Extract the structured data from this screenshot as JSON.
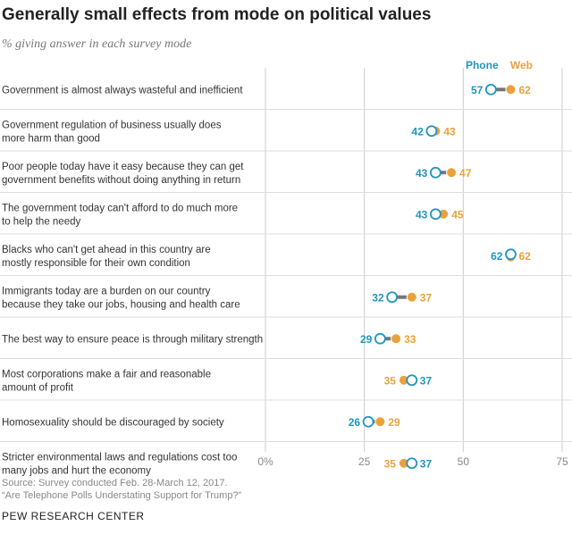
{
  "title": "Generally small effects from mode on political values",
  "subtitle": "% giving answer in each survey mode",
  "colors": {
    "phone": "#1f95bd",
    "web": "#e9a23b",
    "connector": "#777777",
    "grid": "#cccccc",
    "separator": "#dddddd",
    "text": "#333333"
  },
  "chart_data": {
    "type": "dot",
    "series": [
      {
        "name": "Phone",
        "color": "#1f95bd"
      },
      {
        "name": "Web",
        "color": "#e9a23b"
      }
    ],
    "xlim": [
      0,
      75
    ],
    "xticks": [
      {
        "value": 0,
        "label": "0%"
      },
      {
        "value": 25,
        "label": "25"
      },
      {
        "value": 50,
        "label": "50"
      },
      {
        "value": 75,
        "label": "75"
      }
    ],
    "rows": [
      {
        "lines": [
          "Government is almost always wasteful and inefficient"
        ],
        "phone": 57,
        "web": 62
      },
      {
        "lines": [
          "Government regulation of business usually does",
          "more harm than good"
        ],
        "phone": 42,
        "web": 43
      },
      {
        "lines": [
          "Poor people today have it easy because they can get",
          "government benefits without doing anything in return"
        ],
        "phone": 43,
        "web": 47
      },
      {
        "lines": [
          "The government today can't afford to do much more",
          "to help the needy"
        ],
        "phone": 43,
        "web": 45
      },
      {
        "lines": [
          "Blacks who can't get ahead in this country are",
          "mostly responsible for their own condition"
        ],
        "phone": 62,
        "web": 62
      },
      {
        "lines": [
          "Immigrants today are a burden on our country",
          "because they take our jobs, housing and health care"
        ],
        "phone": 32,
        "web": 37
      },
      {
        "lines": [
          "The best way to ensure peace is through military strength"
        ],
        "phone": 29,
        "web": 33
      },
      {
        "lines": [
          "Most corporations make a fair and reasonable",
          "amount of profit"
        ],
        "phone": 37,
        "web": 35
      },
      {
        "lines": [
          "Homosexuality should be discouraged by society"
        ],
        "phone": 26,
        "web": 29
      },
      {
        "lines": [
          "Stricter environmental laws and regulations cost too",
          "many jobs and hurt the economy"
        ],
        "phone": 37,
        "web": 35
      }
    ]
  },
  "footer": {
    "source": "Source: Survey conducted Feb. 28-March 12, 2017.",
    "report": "“Are Telephone Polls Understating Support for Trump?”",
    "org": "PEW RESEARCH CENTER"
  }
}
